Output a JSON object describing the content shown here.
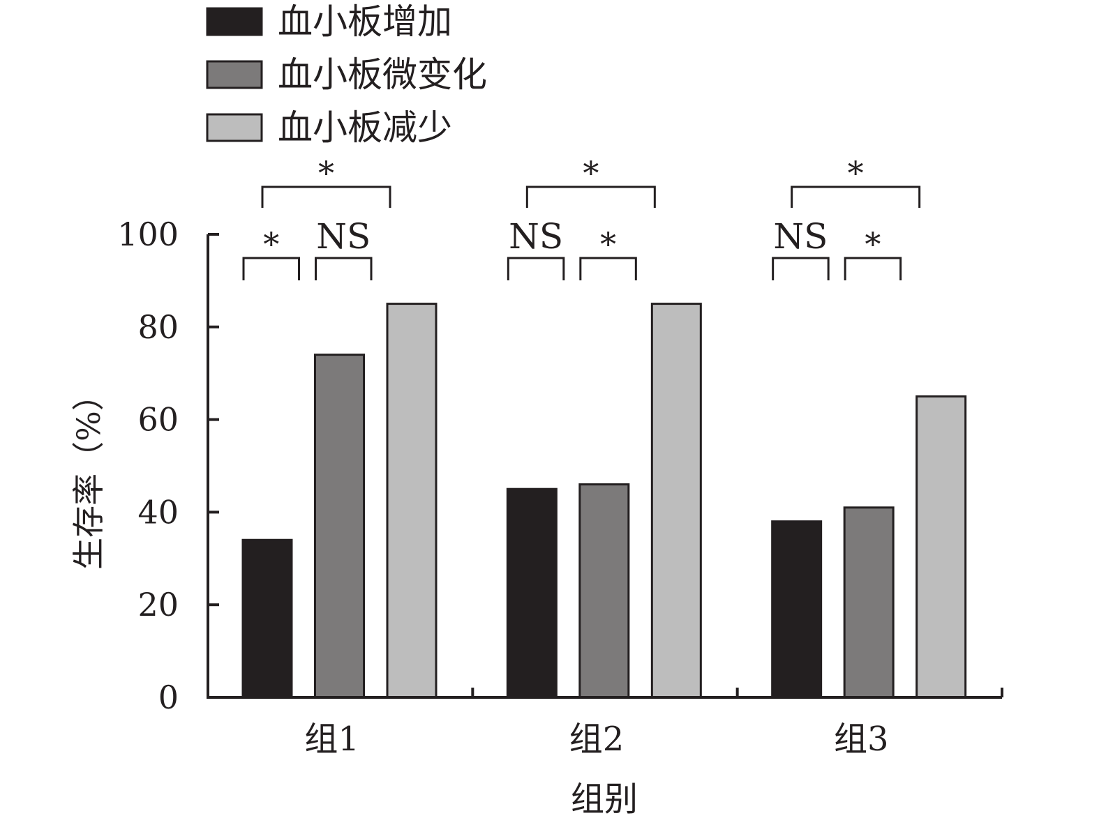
{
  "chart_data": {
    "type": "bar",
    "title": "",
    "xlabel": "组别",
    "ylabel": "生存率（%）",
    "ylim": [
      0,
      100
    ],
    "yticks": [
      "0",
      "20",
      "40",
      "60",
      "80",
      "100"
    ],
    "categories": [
      "组1",
      "组2",
      "组3"
    ],
    "series": [
      {
        "name": "血小板增加",
        "color": "#231f20",
        "values": [
          34,
          45,
          38
        ]
      },
      {
        "name": "血小板微变化",
        "color": "#7c7a7a",
        "values": [
          74,
          46,
          41
        ]
      },
      {
        "name": "血小板减少",
        "color": "#bdbdbd",
        "values": [
          85,
          85,
          65
        ]
      }
    ],
    "grid": false,
    "legend_position": "top-left",
    "significance": [
      {
        "group": 0,
        "from": 0,
        "to": 1,
        "label": "*"
      },
      {
        "group": 0,
        "from": 1,
        "to": 2,
        "label": "NS"
      },
      {
        "group": 0,
        "from": 0,
        "to": 2,
        "label": "*"
      },
      {
        "group": 1,
        "from": 0,
        "to": 1,
        "label": "NS"
      },
      {
        "group": 1,
        "from": 1,
        "to": 2,
        "label": "*"
      },
      {
        "group": 1,
        "from": 0,
        "to": 2,
        "label": "*"
      },
      {
        "group": 2,
        "from": 0,
        "to": 1,
        "label": "NS"
      },
      {
        "group": 2,
        "from": 1,
        "to": 2,
        "label": "*"
      },
      {
        "group": 2,
        "from": 0,
        "to": 2,
        "label": "*"
      }
    ]
  }
}
